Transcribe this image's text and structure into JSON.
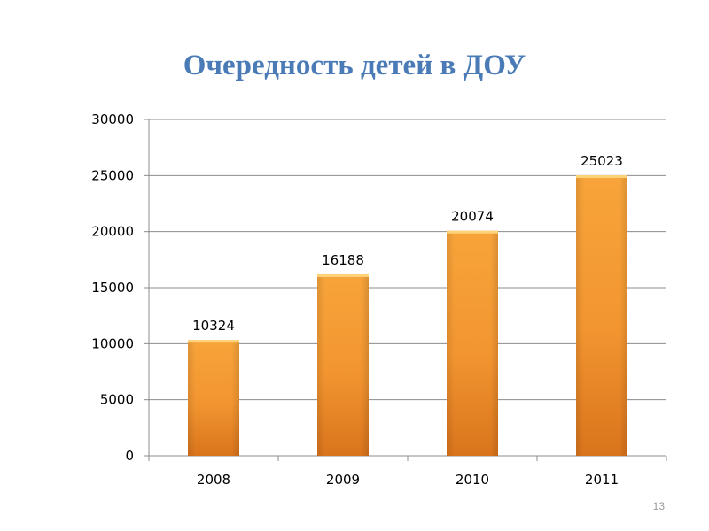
{
  "slide": {
    "title": "Очередность детей в ДОУ",
    "page_number": "13"
  },
  "chart_data": {
    "type": "bar",
    "categories": [
      "2008",
      "2009",
      "2010",
      "2011"
    ],
    "values": [
      10324,
      16188,
      20074,
      25023
    ],
    "data_labels": [
      "10324",
      "16188",
      "20074",
      "25023"
    ],
    "ylim": [
      0,
      30000
    ],
    "yticks": [
      "0",
      "5000",
      "10000",
      "15000",
      "20000",
      "25000",
      "30000"
    ],
    "grid": true,
    "legend": "none",
    "bar_color": "#f39a30",
    "bar_color_dark": "#d9741c",
    "bar_color_top": "#fdd37a"
  }
}
